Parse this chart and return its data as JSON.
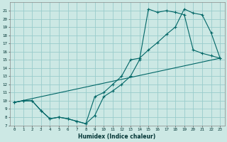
{
  "xlabel": "Humidex (Indice chaleur)",
  "bg_color": "#cce8e4",
  "grid_color": "#99cccc",
  "line_color": "#006666",
  "xlim": [
    -0.5,
    23.5
  ],
  "ylim": [
    7,
    22
  ],
  "xticks": [
    0,
    1,
    2,
    3,
    4,
    5,
    6,
    7,
    8,
    9,
    10,
    11,
    12,
    13,
    14,
    15,
    16,
    17,
    18,
    19,
    20,
    21,
    22,
    23
  ],
  "yticks": [
    7,
    8,
    9,
    10,
    11,
    12,
    13,
    14,
    15,
    16,
    17,
    18,
    19,
    20,
    21
  ],
  "line1_x": [
    0,
    1,
    2,
    3,
    4,
    5,
    6,
    7,
    8,
    9,
    10,
    11,
    12,
    13,
    14,
    15,
    16,
    17,
    18,
    19,
    20,
    21,
    22,
    23
  ],
  "line1_y": [
    9.8,
    10,
    10,
    8.8,
    7.8,
    8.0,
    7.8,
    7.5,
    7.2,
    10.5,
    11.0,
    12.0,
    13.0,
    15.0,
    15.2,
    16.2,
    17.1,
    18.1,
    19.0,
    21.2,
    20.7,
    20.5,
    18.3,
    15.2
  ],
  "line2_x": [
    0,
    1,
    2,
    3,
    4,
    5,
    6,
    7,
    8,
    9,
    10,
    11,
    12,
    13,
    14,
    15,
    16,
    17,
    18,
    19,
    20,
    21,
    22,
    23
  ],
  "line2_y": [
    9.8,
    10,
    10,
    8.8,
    7.8,
    8.0,
    7.8,
    7.5,
    7.2,
    8.2,
    10.5,
    11.2,
    12.0,
    13.0,
    15.0,
    21.2,
    20.8,
    21.0,
    20.8,
    20.5,
    16.2,
    15.8,
    15.5,
    15.2
  ],
  "line3_x": [
    0,
    23
  ],
  "line3_y": [
    9.8,
    15.2
  ]
}
